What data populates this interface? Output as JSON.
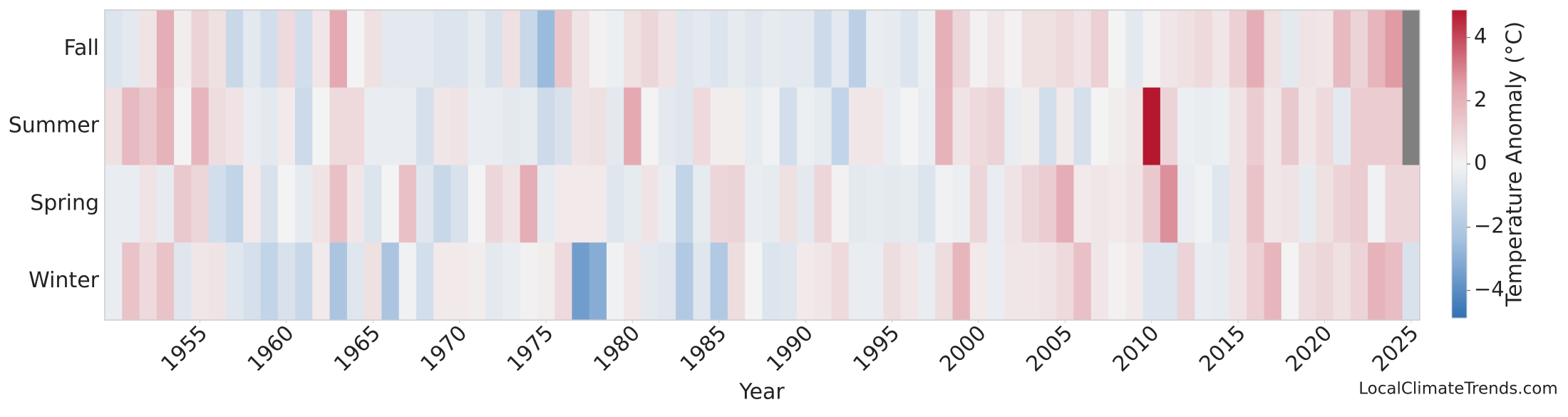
{
  "chart_data": {
    "type": "heatmap",
    "x": [
      1950,
      1951,
      1952,
      1953,
      1954,
      1955,
      1956,
      1957,
      1958,
      1959,
      1960,
      1961,
      1962,
      1963,
      1964,
      1965,
      1966,
      1967,
      1968,
      1969,
      1970,
      1971,
      1972,
      1973,
      1974,
      1975,
      1976,
      1977,
      1978,
      1979,
      1980,
      1981,
      1982,
      1983,
      1984,
      1985,
      1986,
      1987,
      1988,
      1989,
      1990,
      1991,
      1992,
      1993,
      1994,
      1995,
      1996,
      1997,
      1998,
      1999,
      2000,
      2001,
      2002,
      2003,
      2004,
      2005,
      2006,
      2007,
      2008,
      2009,
      2010,
      2011,
      2012,
      2013,
      2014,
      2015,
      2016,
      2017,
      2018,
      2019,
      2020,
      2021,
      2022,
      2023,
      2024,
      2025
    ],
    "series": [
      {
        "name": "Fall",
        "values": [
          -0.7,
          -0.5,
          0.5,
          2.2,
          0.2,
          1.0,
          0.6,
          -1.3,
          -0.5,
          -1.0,
          0.8,
          -1.0,
          0.4,
          2.3,
          0.0,
          0.6,
          -0.5,
          -0.5,
          -0.5,
          -0.7,
          -0.7,
          -0.4,
          -0.8,
          0.6,
          -1.3,
          -2.6,
          1.4,
          0.5,
          0.1,
          -0.2,
          0.6,
          0.9,
          0.5,
          -0.6,
          -0.5,
          -0.7,
          -0.4,
          -0.6,
          -0.4,
          -0.5,
          -0.5,
          -1.2,
          -0.5,
          -1.7,
          -0.3,
          -0.4,
          -0.7,
          -0.2,
          2.1,
          0.9,
          0.1,
          0.4,
          0.1,
          0.6,
          0.6,
          0.8,
          0.5,
          1.1,
          0.0,
          -0.5,
          0.1,
          0.4,
          0.6,
          0.8,
          0.4,
          1.1,
          2.2,
          0.6,
          -0.5,
          0.5,
          0.4,
          1.8,
          1.0,
          1.9,
          2.6,
          null
        ]
      },
      {
        "name": "Summer",
        "values": [
          0.6,
          1.8,
          1.3,
          2.0,
          0.0,
          1.9,
          0.7,
          0.5,
          -0.3,
          -0.5,
          0.3,
          -1.2,
          0.0,
          0.8,
          0.8,
          -0.3,
          -0.3,
          -0.3,
          -0.9,
          0.4,
          0.5,
          -0.3,
          -0.3,
          -0.5,
          -0.4,
          -1.2,
          -0.8,
          0.5,
          0.6,
          -0.5,
          2.3,
          0.0,
          -0.5,
          -0.6,
          0.8,
          0.2,
          0.2,
          -0.4,
          -0.1,
          -1.0,
          -0.2,
          -0.4,
          -1.5,
          0.4,
          0.4,
          -0.3,
          0.0,
          -0.3,
          2.0,
          0.5,
          0.8,
          1.0,
          -0.3,
          0.2,
          -1.0,
          0.3,
          -0.9,
          0.0,
          0.2,
          0.4,
          4.87,
          1.0,
          -0.2,
          -0.3,
          -0.2,
          0.5,
          1.2,
          0.4,
          1.3,
          0.4,
          0.8,
          -0.5,
          1.2,
          1.2,
          1.2,
          null
        ]
      },
      {
        "name": "Spring",
        "values": [
          -0.3,
          -0.3,
          0.5,
          -0.4,
          1.3,
          0.9,
          -1.0,
          -1.5,
          0.3,
          -0.8,
          0.0,
          -0.4,
          0.5,
          1.6,
          0.4,
          -0.7,
          0.0,
          1.6,
          -0.6,
          -1.3,
          -0.8,
          0.0,
          0.9,
          0.5,
          2.2,
          -0.4,
          0.3,
          0.3,
          0.3,
          -0.6,
          -0.4,
          0.5,
          -0.3,
          -1.5,
          -0.4,
          0.9,
          1.0,
          -0.3,
          -0.4,
          0.6,
          -0.5,
          0.9,
          0.1,
          -0.5,
          -0.4,
          -0.5,
          -0.4,
          -0.7,
          -0.1,
          -0.2,
          0.9,
          -0.3,
          0.5,
          0.9,
          1.2,
          2.2,
          0.3,
          0.4,
          0.3,
          0.5,
          1.3,
          2.8,
          -0.3,
          -0.1,
          -0.6,
          0.5,
          1.5,
          0.4,
          0.5,
          -0.4,
          0.6,
          1.0,
          1.2,
          -0.1,
          0.9,
          0.9
        ]
      },
      {
        "name": "Winter",
        "values": [
          -0.3,
          1.5,
          0.8,
          1.5,
          -0.6,
          0.4,
          0.5,
          -0.6,
          -0.9,
          -1.5,
          -0.8,
          -1.3,
          0.3,
          -2.2,
          -0.6,
          0.6,
          -2.2,
          -0.1,
          -1.0,
          0.3,
          0.3,
          0.2,
          -0.5,
          -0.3,
          0.1,
          0.2,
          0.8,
          -3.5,
          -3.0,
          -0.1,
          0.4,
          -0.5,
          -0.6,
          -2.0,
          -0.6,
          -2.0,
          0.7,
          0.0,
          -0.7,
          -0.6,
          0.3,
          0.4,
          0.8,
          -0.3,
          -0.3,
          0.7,
          0.4,
          -0.3,
          0.7,
          1.9,
          0.3,
          -0.3,
          0.4,
          0.4,
          0.5,
          0.8,
          1.6,
          0.4,
          0.1,
          0.3,
          -0.7,
          -0.7,
          1.0,
          -0.3,
          -0.4,
          0.5,
          1.1,
          1.9,
          0.0,
          0.7,
          0.9,
          0.6,
          1.0,
          2.0,
          1.7,
          -0.8
        ]
      }
    ],
    "xticks": [
      1955,
      1960,
      1965,
      1970,
      1975,
      1980,
      1985,
      1990,
      1995,
      2000,
      2005,
      2010,
      2015,
      2020,
      2025
    ],
    "xlabel": "Year",
    "clim": [
      -4.87,
      4.87
    ],
    "cticks": [
      {
        "value": -4,
        "label": "−4"
      },
      {
        "value": -2,
        "label": "−2"
      },
      0,
      2,
      4
    ],
    "colorbar_label": "Temperature Anomaly (°C)",
    "colormap": [
      "#3070b3",
      "#a3c0df",
      "#f3f3f3",
      "#e3a5ae",
      "#b5172e"
    ],
    "missing_color": "#808080",
    "watermark": "LocalClimateTrends.com"
  }
}
